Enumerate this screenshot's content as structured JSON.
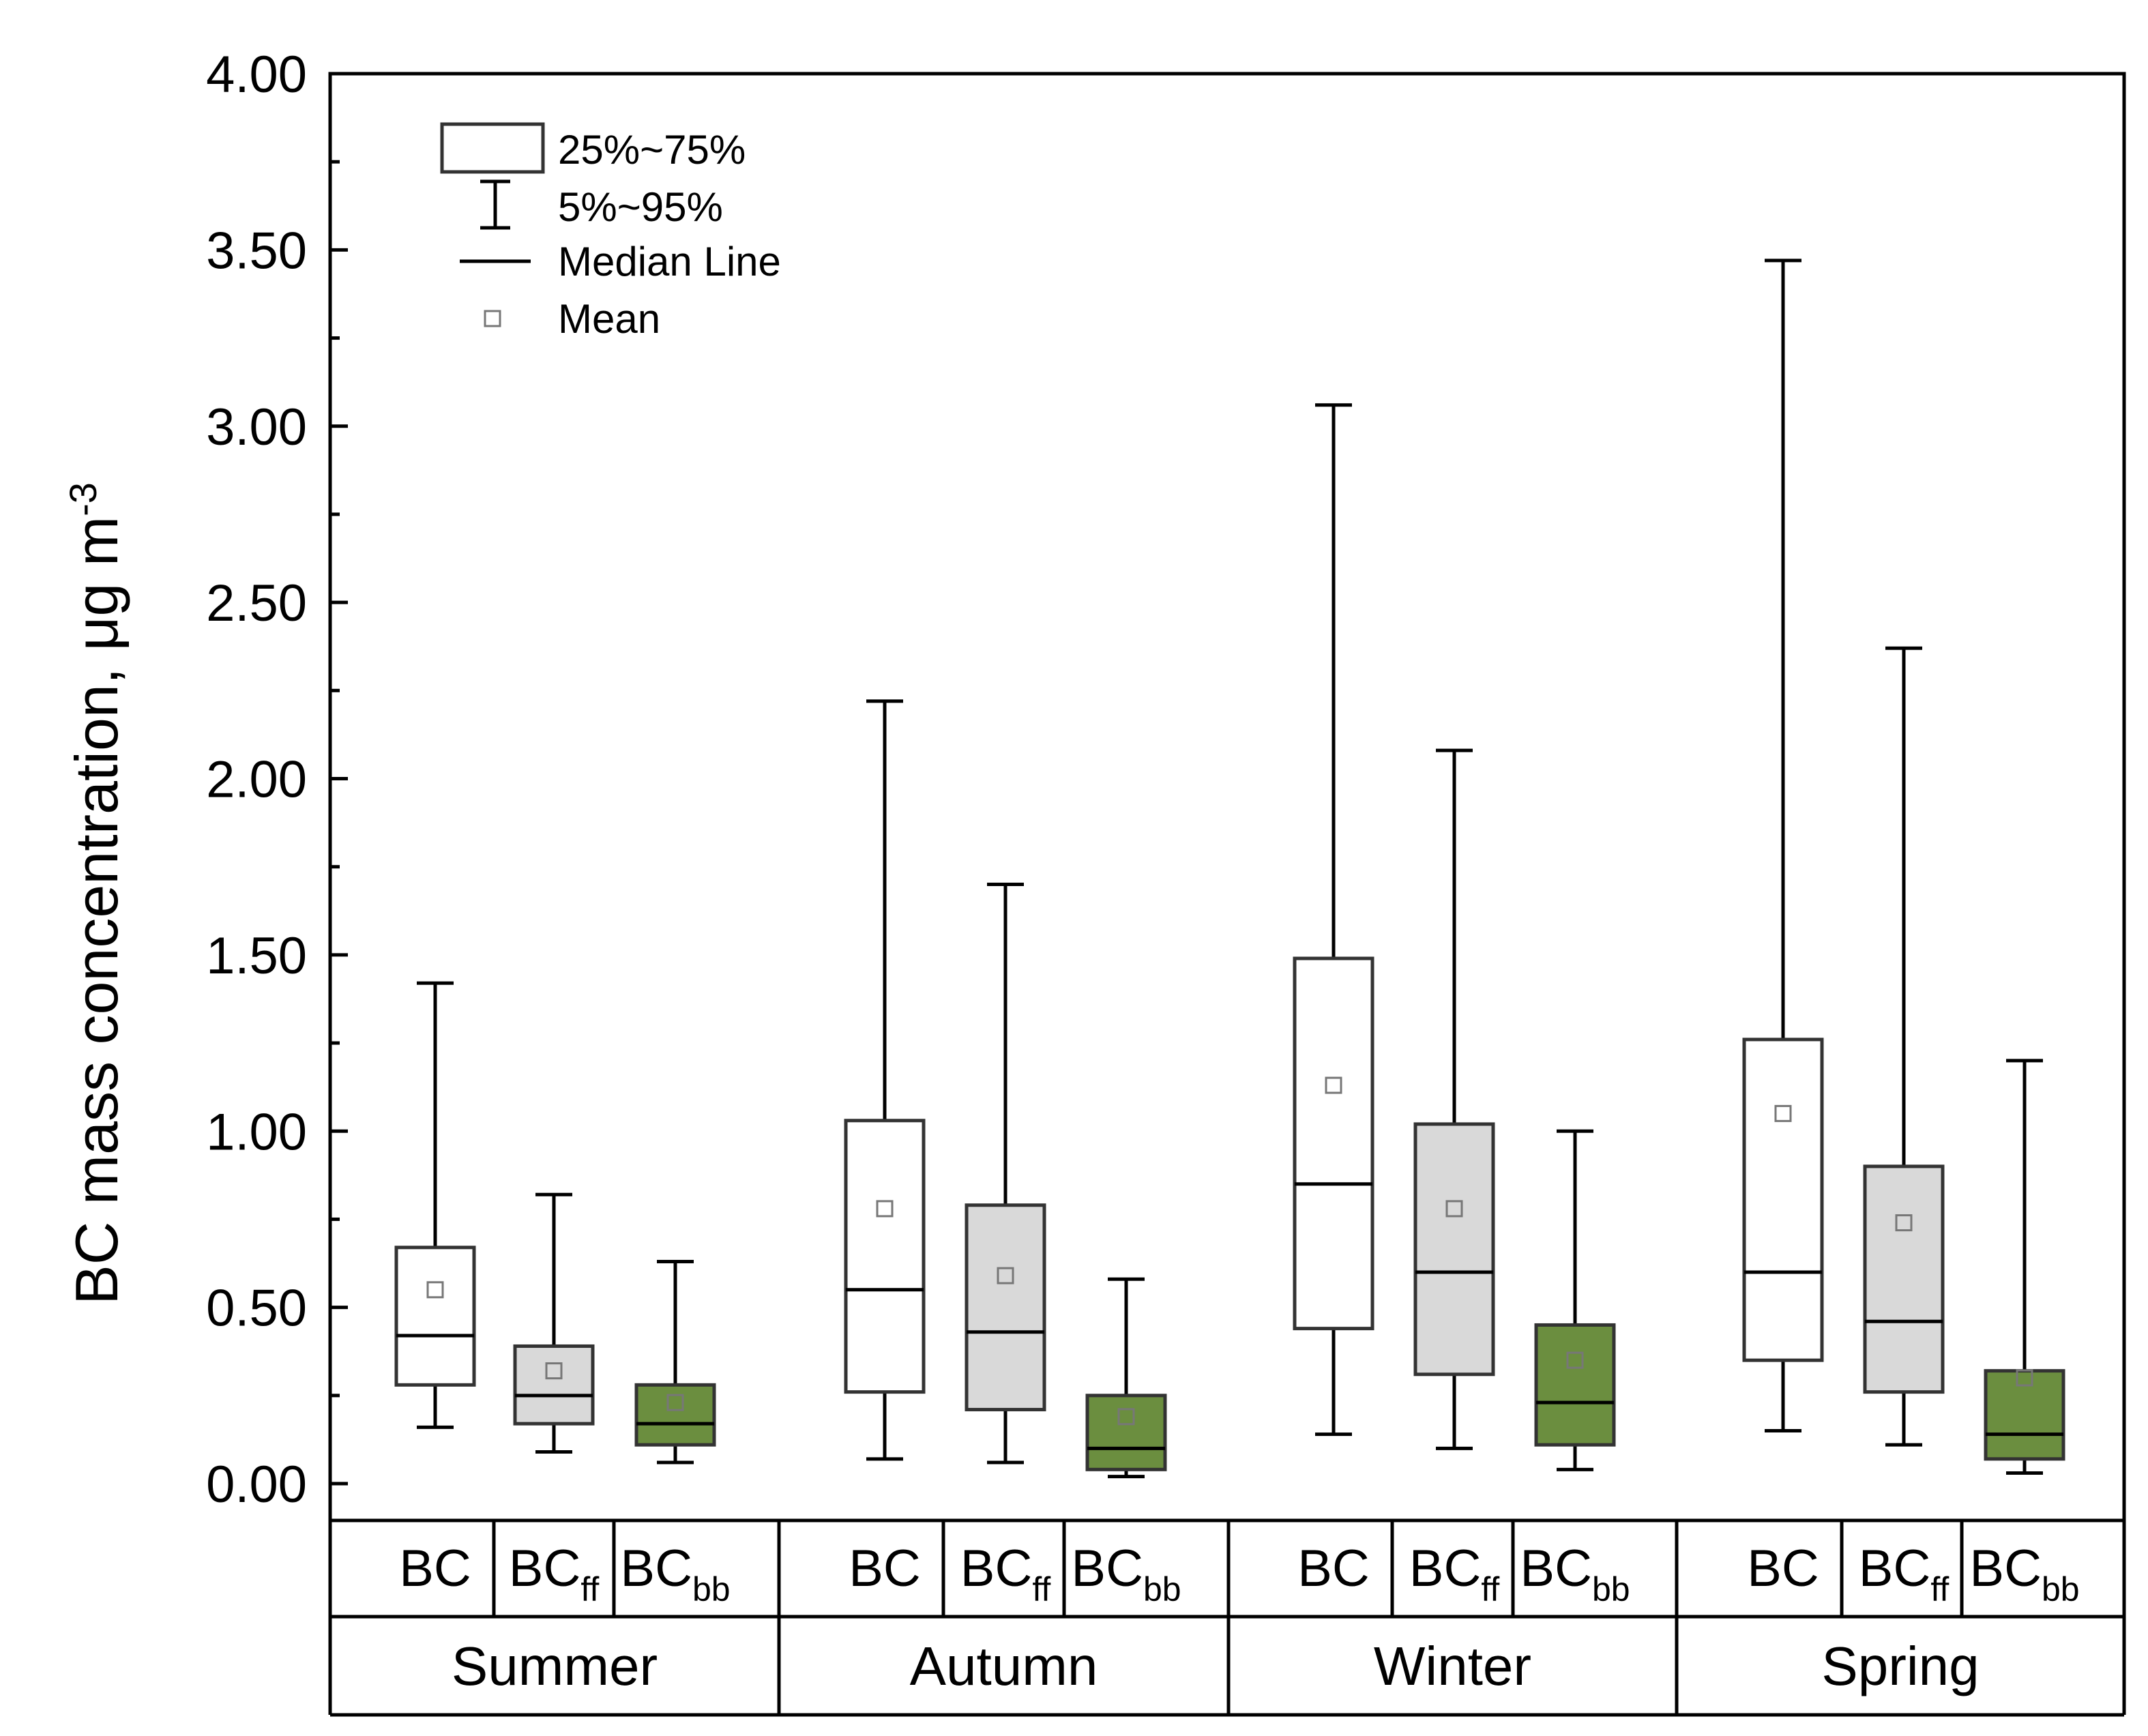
{
  "chart_data": {
    "type": "box",
    "ylabel": "BC mass concentration, μg m",
    "ylabel_superscript": "-3",
    "ylim": [
      0,
      4
    ],
    "yticks": [
      "0.00",
      "0.50",
      "1.00",
      "1.50",
      "2.00",
      "2.50",
      "3.00",
      "3.50",
      "4.00"
    ],
    "ytick_values": [
      0,
      0.5,
      1.0,
      1.5,
      2.0,
      2.5,
      3.0,
      3.5,
      4.0
    ],
    "legend": {
      "box": "25%~75%",
      "whisker": "5%~95%",
      "median": "Median Line",
      "mean": "Mean"
    },
    "colors": {
      "BC": "#ffffff",
      "BCff": "#d9d9d9",
      "BCbb": "#6b8e3f",
      "stroke": "#000000",
      "box_stroke": "#333333",
      "mean_marker": "#777777"
    },
    "seasons": [
      {
        "name": "Summer",
        "groups": [
          {
            "label": "BC",
            "sub": "",
            "p5": 0.16,
            "q1": 0.28,
            "median": 0.42,
            "q3": 0.67,
            "p95": 1.42,
            "mean": 0.55
          },
          {
            "label": "BC",
            "sub": "ff",
            "p5": 0.09,
            "q1": 0.17,
            "median": 0.25,
            "q3": 0.39,
            "p95": 0.82,
            "mean": 0.32
          },
          {
            "label": "BC",
            "sub": "bb",
            "p5": 0.06,
            "q1": 0.11,
            "median": 0.17,
            "q3": 0.28,
            "p95": 0.63,
            "mean": 0.23
          }
        ]
      },
      {
        "name": "Autumn",
        "groups": [
          {
            "label": "BC",
            "sub": "",
            "p5": 0.07,
            "q1": 0.26,
            "median": 0.55,
            "q3": 1.03,
            "p95": 2.22,
            "mean": 0.78
          },
          {
            "label": "BC",
            "sub": "ff",
            "p5": 0.06,
            "q1": 0.21,
            "median": 0.43,
            "q3": 0.79,
            "p95": 1.7,
            "mean": 0.59
          },
          {
            "label": "BC",
            "sub": "bb",
            "p5": 0.02,
            "q1": 0.04,
            "median": 0.1,
            "q3": 0.25,
            "p95": 0.58,
            "mean": 0.19
          }
        ]
      },
      {
        "name": "Winter",
        "groups": [
          {
            "label": "BC",
            "sub": "",
            "p5": 0.14,
            "q1": 0.44,
            "median": 0.85,
            "q3": 1.49,
            "p95": 3.06,
            "mean": 1.13
          },
          {
            "label": "BC",
            "sub": "ff",
            "p5": 0.1,
            "q1": 0.31,
            "median": 0.6,
            "q3": 1.02,
            "p95": 2.08,
            "mean": 0.78
          },
          {
            "label": "BC",
            "sub": "bb",
            "p5": 0.04,
            "q1": 0.11,
            "median": 0.23,
            "q3": 0.45,
            "p95": 1.0,
            "mean": 0.35
          }
        ]
      },
      {
        "name": "Spring",
        "groups": [
          {
            "label": "BC",
            "sub": "",
            "p5": 0.15,
            "q1": 0.35,
            "median": 0.6,
            "q3": 1.26,
            "p95": 3.47,
            "mean": 1.05
          },
          {
            "label": "BC",
            "sub": "ff",
            "p5": 0.11,
            "q1": 0.26,
            "median": 0.46,
            "q3": 0.9,
            "p95": 2.37,
            "mean": 0.74
          },
          {
            "label": "BC",
            "sub": "bb",
            "p5": 0.03,
            "q1": 0.07,
            "median": 0.14,
            "q3": 0.32,
            "p95": 1.2,
            "mean": 0.3
          }
        ]
      }
    ]
  }
}
